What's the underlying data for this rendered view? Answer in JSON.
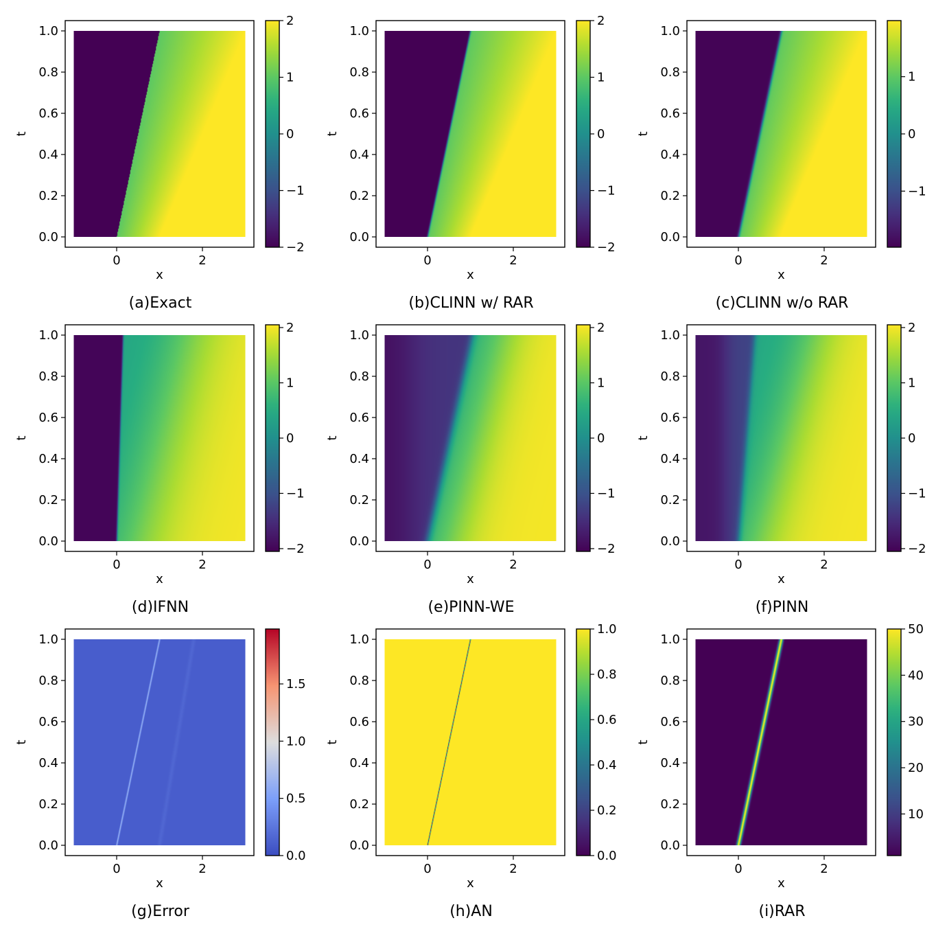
{
  "figure": {
    "type": "heatmap_grid",
    "rows": 3,
    "cols": 3
  },
  "chart_data": [
    {
      "type": "heatmap",
      "id": "a",
      "caption": "(a)Exact",
      "field": "exact_burgers_shock",
      "cmap": "viridis",
      "xlabel": "x",
      "ylabel": "t",
      "xlim": [
        -1.2,
        3.2
      ],
      "ylim": [
        -0.05,
        1.05
      ],
      "xticks": [
        0,
        2
      ],
      "xtick_labels": [
        "0",
        "2"
      ],
      "yticks": [
        0,
        0.2,
        0.4,
        0.6,
        0.8,
        1.0
      ],
      "ytick_labels": [
        "0.0",
        "0.2",
        "0.4",
        "0.6",
        "0.8",
        "1.0"
      ],
      "cbar_range": [
        -2,
        2
      ],
      "cbar_ticks": [
        -2,
        -1,
        0,
        1,
        2
      ],
      "cbar_tick_labels": [
        "−2",
        "−1",
        "0",
        "1",
        "2"
      ]
    },
    {
      "type": "heatmap",
      "id": "b",
      "caption": "(b)CLINN w/ RAR",
      "field": "clinn_rar",
      "cmap": "viridis",
      "xlabel": "x",
      "ylabel": "t",
      "xlim": [
        -1.2,
        3.2
      ],
      "ylim": [
        -0.05,
        1.05
      ],
      "xticks": [
        0,
        2
      ],
      "xtick_labels": [
        "0",
        "2"
      ],
      "yticks": [
        0,
        0.2,
        0.4,
        0.6,
        0.8,
        1.0
      ],
      "ytick_labels": [
        "0.0",
        "0.2",
        "0.4",
        "0.6",
        "0.8",
        "1.0"
      ],
      "cbar_range": [
        -2,
        2
      ],
      "cbar_ticks": [
        -2,
        -1,
        0,
        1,
        2
      ],
      "cbar_tick_labels": [
        "−2",
        "−1",
        "0",
        "1",
        "2"
      ]
    },
    {
      "type": "heatmap",
      "id": "c",
      "caption": "(c)CLINN w/o RAR",
      "field": "clinn_norar",
      "cmap": "viridis",
      "xlabel": "x",
      "ylabel": "t",
      "xlim": [
        -1.2,
        3.2
      ],
      "ylim": [
        -0.05,
        1.05
      ],
      "xticks": [
        0,
        2
      ],
      "xtick_labels": [
        "0",
        "2"
      ],
      "yticks": [
        0,
        0.2,
        0.4,
        0.6,
        0.8,
        1.0
      ],
      "ytick_labels": [
        "0.0",
        "0.2",
        "0.4",
        "0.6",
        "0.8",
        "1.0"
      ],
      "cbar_range": [
        -1.98,
        1.98
      ],
      "cbar_ticks": [
        -1,
        0,
        1
      ],
      "cbar_tick_labels": [
        "−1",
        "0",
        "1"
      ]
    },
    {
      "type": "heatmap",
      "id": "d",
      "caption": "(d)IFNN",
      "field": "ifnn",
      "cmap": "viridis",
      "xlabel": "x",
      "ylabel": "t",
      "xlim": [
        -1.2,
        3.2
      ],
      "ylim": [
        -0.05,
        1.05
      ],
      "xticks": [
        0,
        2
      ],
      "xtick_labels": [
        "0",
        "2"
      ],
      "yticks": [
        0,
        0.2,
        0.4,
        0.6,
        0.8,
        1.0
      ],
      "ytick_labels": [
        "0.0",
        "0.2",
        "0.4",
        "0.6",
        "0.8",
        "1.0"
      ],
      "cbar_range": [
        -2.05,
        2.05
      ],
      "cbar_ticks": [
        -2,
        -1,
        0,
        1,
        2
      ],
      "cbar_tick_labels": [
        "−2",
        "−1",
        "0",
        "1",
        "2"
      ]
    },
    {
      "type": "heatmap",
      "id": "e",
      "caption": "(e)PINN-WE",
      "field": "pinn_we",
      "cmap": "viridis",
      "xlabel": "x",
      "ylabel": "t",
      "xlim": [
        -1.2,
        3.2
      ],
      "ylim": [
        -0.05,
        1.05
      ],
      "xticks": [
        0,
        2
      ],
      "xtick_labels": [
        "0",
        "2"
      ],
      "yticks": [
        0,
        0.2,
        0.4,
        0.6,
        0.8,
        1.0
      ],
      "ytick_labels": [
        "0.0",
        "0.2",
        "0.4",
        "0.6",
        "0.8",
        "1.0"
      ],
      "cbar_range": [
        -2.05,
        2.05
      ],
      "cbar_ticks": [
        -2,
        -1,
        0,
        1,
        2
      ],
      "cbar_tick_labels": [
        "−2",
        "−1",
        "0",
        "1",
        "2"
      ]
    },
    {
      "type": "heatmap",
      "id": "f",
      "caption": "(f)PINN",
      "field": "pinn",
      "cmap": "viridis",
      "xlabel": "x",
      "ylabel": "t",
      "xlim": [
        -1.2,
        3.2
      ],
      "ylim": [
        -0.05,
        1.05
      ],
      "xticks": [
        0,
        2
      ],
      "xtick_labels": [
        "0",
        "2"
      ],
      "yticks": [
        0,
        0.2,
        0.4,
        0.6,
        0.8,
        1.0
      ],
      "ytick_labels": [
        "0.0",
        "0.2",
        "0.4",
        "0.6",
        "0.8",
        "1.0"
      ],
      "cbar_range": [
        -2.05,
        2.05
      ],
      "cbar_ticks": [
        -2,
        -1,
        0,
        1,
        2
      ],
      "cbar_tick_labels": [
        "−2",
        "−1",
        "0",
        "1",
        "2"
      ]
    },
    {
      "type": "heatmap",
      "id": "g",
      "caption": "(g)Error",
      "field": "error",
      "cmap": "coolwarm",
      "xlabel": "x",
      "ylabel": "t",
      "xlim": [
        -1.2,
        3.2
      ],
      "ylim": [
        -0.05,
        1.05
      ],
      "xticks": [
        0,
        2
      ],
      "xtick_labels": [
        "0",
        "2"
      ],
      "yticks": [
        0,
        0.2,
        0.4,
        0.6,
        0.8,
        1.0
      ],
      "ytick_labels": [
        "0.0",
        "0.2",
        "0.4",
        "0.6",
        "0.8",
        "1.0"
      ],
      "cbar_range": [
        0,
        1.98
      ],
      "cbar_ticks": [
        0,
        0.5,
        1.0,
        1.5
      ],
      "cbar_tick_labels": [
        "0.0",
        "0.5",
        "1.0",
        "1.5"
      ]
    },
    {
      "type": "heatmap",
      "id": "h",
      "caption": "(h)AN",
      "field": "an",
      "cmap": "viridis",
      "xlabel": "x",
      "ylabel": "t",
      "xlim": [
        -1.2,
        3.2
      ],
      "ylim": [
        -0.05,
        1.05
      ],
      "xticks": [
        0,
        2
      ],
      "xtick_labels": [
        "0",
        "2"
      ],
      "yticks": [
        0,
        0.2,
        0.4,
        0.6,
        0.8,
        1.0
      ],
      "ytick_labels": [
        "0.0",
        "0.2",
        "0.4",
        "0.6",
        "0.8",
        "1.0"
      ],
      "cbar_range": [
        0,
        1.0
      ],
      "cbar_ticks": [
        0,
        0.2,
        0.4,
        0.6,
        0.8,
        1.0
      ],
      "cbar_tick_labels": [
        "0.0",
        "0.2",
        "0.4",
        "0.6",
        "0.8",
        "1.0"
      ]
    },
    {
      "type": "heatmap",
      "id": "i",
      "caption": "(i)RAR",
      "field": "rar",
      "cmap": "viridis",
      "xlabel": "x",
      "ylabel": "t",
      "xlim": [
        -1.2,
        3.2
      ],
      "ylim": [
        -0.05,
        1.05
      ],
      "xticks": [
        0,
        2
      ],
      "xtick_labels": [
        "0",
        "2"
      ],
      "yticks": [
        0,
        0.2,
        0.4,
        0.6,
        0.8,
        1.0
      ],
      "ytick_labels": [
        "0.0",
        "0.2",
        "0.4",
        "0.6",
        "0.8",
        "1.0"
      ],
      "cbar_range": [
        1,
        50
      ],
      "cbar_ticks": [
        10,
        20,
        30,
        40,
        50
      ],
      "cbar_tick_labels": [
        "10",
        "20",
        "30",
        "40",
        "50"
      ]
    }
  ]
}
